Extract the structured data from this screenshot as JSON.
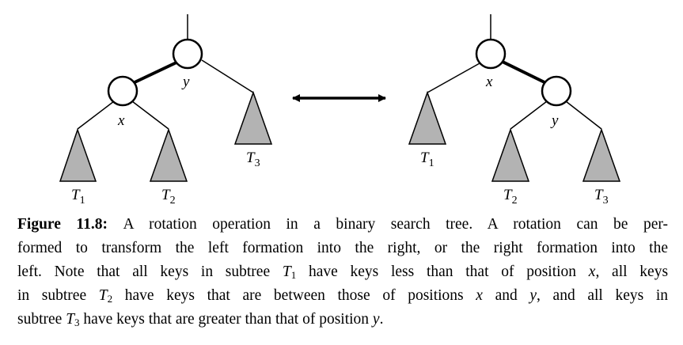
{
  "diagram": {
    "left_tree": {
      "node_upper_label": "y",
      "node_lower_label": "x",
      "subtrees": [
        {
          "main": "T",
          "sub": "1"
        },
        {
          "main": "T",
          "sub": "2"
        },
        {
          "main": "T",
          "sub": "3"
        }
      ]
    },
    "right_tree": {
      "node_upper_label": "x",
      "node_lower_label": "y",
      "subtrees": [
        {
          "main": "T",
          "sub": "1"
        },
        {
          "main": "T",
          "sub": "2"
        },
        {
          "main": "T",
          "sub": "3"
        }
      ]
    },
    "subtree_fill": "#b3b3b3",
    "arrow_meaning": "bidirectional"
  },
  "caption": {
    "label": "Figure 11.8:",
    "line1": "A rotation operation in a binary search tree. A rotation can be per-",
    "line2": "formed to transform the left formation into the right, or the right formation into the",
    "line3_a": "left. Note that all keys in subtree",
    "line3_T": "T",
    "line3_sub": "1",
    "line3_b": "have keys less than that of position",
    "line3_x": "x",
    "line3_c": ", all keys",
    "line4_a": "in subtree",
    "line4_T": "T",
    "line4_sub": "2",
    "line4_b": "have keys that are between those of positions",
    "line4_x": "x",
    "line4_c": "and",
    "line4_y": "y",
    "line4_d": ", and all keys in",
    "line5_a": "subtree",
    "line5_T": "T",
    "line5_sub": "3",
    "line5_b": "have keys that are greater than that of position",
    "line5_y": "y",
    "line5_c": "."
  }
}
